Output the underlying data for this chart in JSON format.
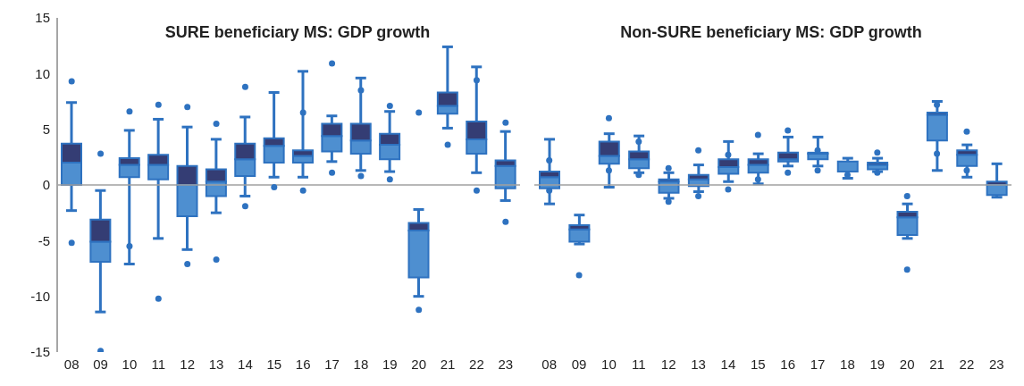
{
  "chart_data": [
    {
      "type": "box",
      "title": "SURE beneficiary MS: GDP growth",
      "categories": [
        "08",
        "09",
        "10",
        "11",
        "12",
        "13",
        "14",
        "15",
        "16",
        "17",
        "18",
        "19",
        "20",
        "21",
        "22",
        "23"
      ],
      "ylim": [
        -15,
        15
      ],
      "yticks": [
        -15,
        -10,
        -5,
        0,
        5,
        10,
        15
      ],
      "grid": false,
      "ref_lines": [
        {
          "axis": "y",
          "value": 0,
          "color": "#a0a0a0"
        }
      ],
      "series": [
        {
          "color": "#4e8fd0",
          "boxes": [
            {
              "low": -2.3,
              "q1": 0,
              "median": 2.0,
              "q3": 3.7,
              "high": 7.4,
              "outliers": [
                9.3,
                -5.2
              ]
            },
            {
              "low": -11.4,
              "q1": -6.9,
              "median": -5.1,
              "q3": -3.1,
              "high": -0.5,
              "outliers": [
                2.8,
                -14.9
              ]
            },
            {
              "low": -7.1,
              "q1": 0.7,
              "median": 1.8,
              "q3": 2.4,
              "high": 4.9,
              "outliers": [
                6.6,
                -5.5
              ]
            },
            {
              "low": -4.8,
              "q1": 0.5,
              "median": 1.8,
              "q3": 2.7,
              "high": 5.9,
              "outliers": [
                7.2,
                -10.2
              ]
            },
            {
              "low": -5.8,
              "q1": -2.8,
              "median": 0,
              "q3": 1.7,
              "high": 5.2,
              "outliers": [
                7.0,
                -7.1
              ]
            },
            {
              "low": -2.5,
              "q1": -1.0,
              "median": 0.3,
              "q3": 1.4,
              "high": 4.1,
              "outliers": [
                5.5,
                -6.7
              ]
            },
            {
              "low": -1.0,
              "q1": 0.8,
              "median": 2.3,
              "q3": 3.7,
              "high": 6.1,
              "outliers": [
                8.8,
                -1.9
              ]
            },
            {
              "low": 0.7,
              "q1": 2.0,
              "median": 3.5,
              "q3": 4.2,
              "high": 8.3,
              "outliers": [
                -0.2
              ]
            },
            {
              "low": 0.7,
              "q1": 2.0,
              "median": 2.6,
              "q3": 3.1,
              "high": 10.2,
              "outliers": [
                6.5,
                -0.5
              ]
            },
            {
              "low": 2.1,
              "q1": 3.0,
              "median": 4.4,
              "q3": 5.5,
              "high": 6.2,
              "outliers": [
                10.9,
                1.1
              ]
            },
            {
              "low": 1.3,
              "q1": 2.8,
              "median": 4.0,
              "q3": 5.5,
              "high": 9.6,
              "outliers": [
                8.5,
                0.8
              ]
            },
            {
              "low": 1.2,
              "q1": 2.3,
              "median": 3.6,
              "q3": 4.6,
              "high": 6.6,
              "outliers": [
                7.1,
                0.5
              ]
            },
            {
              "low": -10.0,
              "q1": -8.3,
              "median": -4.1,
              "q3": -3.4,
              "high": -2.2,
              "outliers": [
                6.5,
                -11.2
              ]
            },
            {
              "low": 5.1,
              "q1": 6.4,
              "median": 7.1,
              "q3": 8.3,
              "high": 12.4,
              "outliers": [
                3.6
              ]
            },
            {
              "low": 1.1,
              "q1": 2.8,
              "median": 4.1,
              "q3": 5.7,
              "high": 10.6,
              "outliers": [
                9.4,
                -0.5
              ]
            },
            {
              "low": -1.4,
              "q1": -0.3,
              "median": 1.7,
              "q3": 2.2,
              "high": 4.8,
              "outliers": [
                5.6,
                -3.3
              ]
            }
          ]
        }
      ]
    },
    {
      "type": "box",
      "title": "Non-SURE beneficiary MS: GDP growth",
      "categories": [
        "08",
        "09",
        "10",
        "11",
        "12",
        "13",
        "14",
        "15",
        "16",
        "17",
        "18",
        "19",
        "20",
        "21",
        "22",
        "23"
      ],
      "ylim": [
        -15,
        15
      ],
      "yticks": [
        -15,
        -10,
        -5,
        0,
        5,
        10,
        15
      ],
      "tick_labels": "x",
      "grid": false,
      "ref_lines": [
        {
          "axis": "y",
          "value": 0,
          "color": "#a0a0a0"
        }
      ],
      "series": [
        {
          "color": "#4e8fd0",
          "boxes": [
            {
              "low": -1.7,
              "q1": -0.3,
              "median": 0.7,
              "q3": 1.2,
              "high": 4.1,
              "outliers": [
                2.2,
                -0.5
              ]
            },
            {
              "low": -5.3,
              "q1": -5.1,
              "median": -4.0,
              "q3": -3.6,
              "high": -2.7,
              "outliers": [
                -8.1
              ]
            },
            {
              "low": -0.2,
              "q1": 1.9,
              "median": 2.6,
              "q3": 3.9,
              "high": 4.6,
              "outliers": [
                6.0,
                1.3
              ]
            },
            {
              "low": 1.1,
              "q1": 1.5,
              "median": 2.3,
              "q3": 3.0,
              "high": 4.4,
              "outliers": [
                3.9,
                0.9
              ]
            },
            {
              "low": -1.2,
              "q1": -0.7,
              "median": 0.3,
              "q3": 0.5,
              "high": 1.1,
              "outliers": [
                1.5,
                -1.5
              ]
            },
            {
              "low": -0.6,
              "q1": -0.1,
              "median": 0.5,
              "q3": 0.9,
              "high": 1.8,
              "outliers": [
                3.1,
                -1.0
              ]
            },
            {
              "low": 0.3,
              "q1": 1.0,
              "median": 1.6,
              "q3": 2.3,
              "high": 3.9,
              "outliers": [
                2.7,
                -0.4
              ]
            },
            {
              "low": 0.1,
              "q1": 1.1,
              "median": 1.8,
              "q3": 2.3,
              "high": 2.8,
              "outliers": [
                4.5,
                0.5
              ]
            },
            {
              "low": 1.7,
              "q1": 2.1,
              "median": 2.3,
              "q3": 2.9,
              "high": 4.3,
              "outliers": [
                4.9,
                1.1
              ]
            },
            {
              "low": 1.7,
              "q1": 2.3,
              "median": 2.8,
              "q3": 2.9,
              "high": 4.3,
              "outliers": [
                3.1,
                1.3
              ]
            },
            {
              "low": 0.6,
              "q1": 1.2,
              "median": 2.1,
              "q3": 2.1,
              "high": 2.4,
              "outliers": [
                0.9
              ]
            },
            {
              "low": 1.2,
              "q1": 1.4,
              "median": 1.8,
              "q3": 2.0,
              "high": 2.4,
              "outliers": [
                2.9,
                1.1
              ]
            },
            {
              "low": -4.8,
              "q1": -4.5,
              "median": -2.9,
              "q3": -2.4,
              "high": -1.7,
              "outliers": [
                -1.0,
                -7.6
              ]
            },
            {
              "low": 1.3,
              "q1": 4.0,
              "median": 6.3,
              "q3": 6.5,
              "high": 7.5,
              "outliers": [
                7.2,
                2.8
              ]
            },
            {
              "low": 0.7,
              "q1": 1.7,
              "median": 2.7,
              "q3": 3.1,
              "high": 3.6,
              "outliers": [
                4.8,
                1.3
              ]
            },
            {
              "low": -1.1,
              "q1": -0.9,
              "median": 0,
              "q3": 0.3,
              "high": 1.9
            }
          ]
        }
      ]
    }
  ]
}
